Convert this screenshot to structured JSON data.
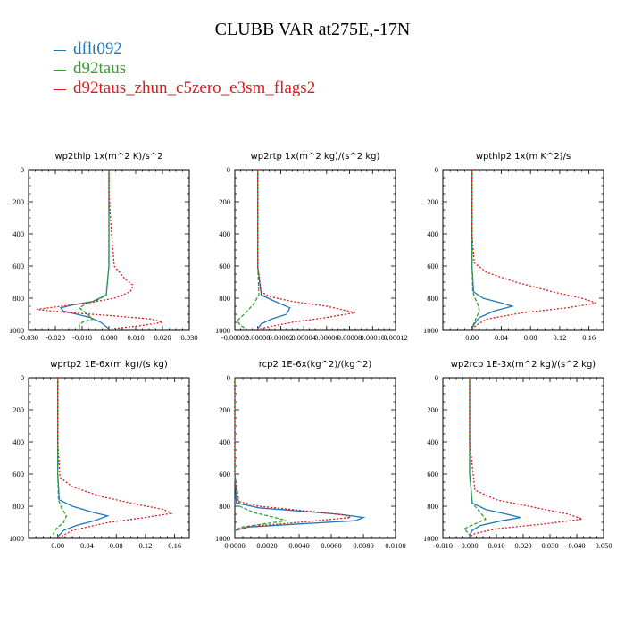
{
  "figure_title": "CLUBB VAR at275E,-17N",
  "legend": [
    {
      "label": "dflt092",
      "color": "#2276b8"
    },
    {
      "label": "d92taus",
      "color": "#33a02c"
    },
    {
      "label": "d92taus_zhun_c5zero_e3sm_flags2",
      "color": "#e31a1c"
    }
  ],
  "chart_data": [
    {
      "type": "line",
      "title": "wp2thlp   1x(m^2 K)/s^2",
      "xlim": [
        -0.03,
        0.03
      ],
      "xticks": [
        -0.03,
        -0.02,
        -0.01,
        0.0,
        0.01,
        0.02,
        0.03
      ],
      "xtick_labels": [
        "-0.030",
        "-0.020",
        "-0.010",
        "0.000",
        "0.010",
        "0.020",
        "0.030"
      ],
      "ylim": [
        1000,
        0
      ],
      "yticks": [
        0,
        200,
        400,
        600,
        800,
        1000
      ],
      "series": [
        {
          "name": "dflt092",
          "x": [
            0.0,
            0.0,
            0.0,
            0.0,
            -0.001,
            -0.006,
            -0.013,
            -0.018,
            -0.017,
            -0.012,
            -0.007,
            -0.003,
            0.0
          ],
          "y": [
            0,
            200,
            400,
            600,
            780,
            820,
            840,
            860,
            880,
            900,
            920,
            950,
            990
          ]
        },
        {
          "name": "d92taus",
          "x": [
            0.0,
            0.0,
            0.0,
            0.0,
            -0.001,
            -0.004,
            -0.008,
            -0.011,
            -0.008,
            -0.006,
            -0.01,
            -0.011,
            -0.011
          ],
          "y": [
            0,
            200,
            400,
            600,
            780,
            810,
            830,
            860,
            900,
            930,
            950,
            970,
            990
          ]
        },
        {
          "name": "d92taus_zhun_c5zero_e3sm_flags2",
          "x": [
            0.0,
            0.0,
            0.001,
            0.002,
            0.006,
            0.009,
            0.008,
            0.002,
            -0.008,
            -0.018,
            -0.027,
            -0.015,
            0.002,
            0.016,
            0.02,
            0.012,
            0.001
          ],
          "y": [
            0,
            150,
            400,
            600,
            680,
            720,
            760,
            800,
            830,
            850,
            870,
            890,
            910,
            930,
            950,
            970,
            990
          ]
        }
      ]
    },
    {
      "type": "line",
      "title": "wp2rtp   1x(m^2 kg)/(s^2 kg)",
      "xlim": [
        -2e-05,
        0.00012
      ],
      "xticks": [
        -2e-05,
        0.0,
        2e-05,
        4e-05,
        6e-05,
        8e-05,
        0.0001,
        0.00012
      ],
      "xtick_labels": [
        "-0.00002",
        "0.00000",
        "0.00002",
        "0.00004",
        "0.00006",
        "0.00008",
        "0.00010",
        "0.00012"
      ],
      "ylim": [
        1000,
        0
      ],
      "yticks": [
        0,
        200,
        400,
        600,
        800,
        1000
      ],
      "series": [
        {
          "name": "dflt092",
          "x": [
            0.0,
            0.0,
            0.0,
            0.0,
            3e-06,
            1.5e-05,
            2.8e-05,
            2.5e-05,
            1.2e-05,
            3e-06,
            0.0
          ],
          "y": [
            0,
            200,
            400,
            600,
            780,
            820,
            860,
            900,
            930,
            960,
            990
          ]
        },
        {
          "name": "d92taus",
          "x": [
            0.0,
            0.0,
            0.0,
            0.0,
            1e-06,
            -4e-06,
            -1.2e-05,
            -1.8e-05,
            -1.5e-05,
            -1e-05
          ],
          "y": [
            0,
            200,
            400,
            600,
            780,
            840,
            900,
            940,
            970,
            990
          ]
        },
        {
          "name": "d92taus_zhun_c5zero_e3sm_flags2",
          "x": [
            0.0,
            0.0,
            0.0,
            0.0,
            3e-06,
            1e-05,
            3e-05,
            6e-05,
            8.5e-05,
            6e-05,
            3e-05,
            8e-06,
            0.0
          ],
          "y": [
            0,
            200,
            400,
            600,
            760,
            790,
            820,
            850,
            890,
            920,
            950,
            980,
            995
          ]
        }
      ]
    },
    {
      "type": "line",
      "title": "wpthlp2   1x(m K^2)/s",
      "xlim": [
        -0.04,
        0.18
      ],
      "xticks": [
        0.0,
        0.04,
        0.08,
        0.12,
        0.16
      ],
      "xtick_labels": [
        "0.00",
        "0.04",
        "0.08",
        "0.12",
        "0.16"
      ],
      "ylim": [
        1000,
        0
      ],
      "yticks": [
        0,
        200,
        400,
        600,
        800,
        1000
      ],
      "series": [
        {
          "name": "dflt092",
          "x": [
            0.0,
            0.0,
            0.0,
            0.0,
            0.002,
            0.015,
            0.04,
            0.055,
            0.03,
            0.01,
            0.003,
            0.0
          ],
          "y": [
            0,
            200,
            400,
            600,
            760,
            800,
            830,
            850,
            880,
            920,
            960,
            990
          ]
        },
        {
          "name": "d92taus",
          "x": [
            0.0,
            0.0,
            0.0,
            0.0,
            0.001,
            0.004,
            0.008,
            0.01,
            0.006,
            0.002,
            0.0
          ],
          "y": [
            0,
            200,
            400,
            600,
            760,
            800,
            840,
            880,
            920,
            960,
            990
          ]
        },
        {
          "name": "d92taus_zhun_c5zero_e3sm_flags2",
          "x": [
            0.0,
            0.0,
            0.0,
            0.003,
            0.02,
            0.06,
            0.11,
            0.15,
            0.17,
            0.13,
            0.07,
            0.02,
            0.005,
            0.0
          ],
          "y": [
            0,
            200,
            400,
            580,
            640,
            700,
            760,
            800,
            830,
            860,
            890,
            930,
            970,
            995
          ]
        }
      ]
    },
    {
      "type": "line",
      "title": "wprtp2   1E-6x(m kg)/(s kg)",
      "xlim": [
        -0.04,
        0.18
      ],
      "xticks": [
        0.0,
        0.04,
        0.08,
        0.12,
        0.16
      ],
      "xtick_labels": [
        "0.00",
        "0.04",
        "0.08",
        "0.12",
        "0.16"
      ],
      "ylim": [
        1000,
        0
      ],
      "yticks": [
        0,
        200,
        400,
        600,
        800,
        1000
      ],
      "series": [
        {
          "name": "dflt092",
          "x": [
            0.0,
            0.0,
            0.0,
            0.0,
            0.002,
            0.02,
            0.05,
            0.068,
            0.05,
            0.025,
            0.008,
            0.0
          ],
          "y": [
            0,
            200,
            400,
            600,
            760,
            800,
            840,
            860,
            890,
            920,
            950,
            990
          ]
        },
        {
          "name": "d92taus",
          "x": [
            0.0,
            0.0,
            0.0,
            0.0,
            0.001,
            0.005,
            0.012,
            0.008,
            -0.002,
            -0.006,
            -0.004
          ],
          "y": [
            0,
            200,
            400,
            600,
            760,
            810,
            860,
            900,
            940,
            970,
            990
          ]
        },
        {
          "name": "d92taus_zhun_c5zero_e3sm_flags2",
          "x": [
            0.0,
            0.0,
            0.0,
            0.003,
            0.02,
            0.06,
            0.11,
            0.145,
            0.155,
            0.12,
            0.07,
            0.02,
            0.002
          ],
          "y": [
            0,
            200,
            400,
            620,
            680,
            740,
            790,
            820,
            845,
            870,
            900,
            950,
            995
          ]
        }
      ]
    },
    {
      "type": "line",
      "title": "rcp2   1E-6x(kg^2)/(kg^2)",
      "xlim": [
        0.0,
        0.01
      ],
      "xticks": [
        0.0,
        0.002,
        0.004,
        0.006,
        0.008,
        0.01
      ],
      "xtick_labels": [
        "0.0000",
        "0.0020",
        "0.0040",
        "0.0060",
        "0.0080",
        "0.0100"
      ],
      "ylim": [
        1000,
        0
      ],
      "yticks": [
        0,
        200,
        400,
        600,
        800,
        1000
      ],
      "series": [
        {
          "name": "dflt092",
          "x": [
            0.0,
            0.0,
            0.0,
            0.0001,
            0.0015,
            0.004,
            0.0065,
            0.008,
            0.0075,
            0.004,
            0.0008,
            0.0
          ],
          "y": [
            0,
            200,
            600,
            780,
            810,
            830,
            850,
            870,
            890,
            910,
            930,
            950
          ]
        },
        {
          "name": "d92taus",
          "x": [
            0.0,
            0.0,
            0.0,
            0.0003,
            0.0012,
            0.0025,
            0.0032,
            0.0018,
            0.0004,
            0.0
          ],
          "y": [
            0,
            200,
            600,
            800,
            840,
            870,
            890,
            910,
            930,
            950
          ]
        },
        {
          "name": "d92taus_zhun_c5zero_e3sm_flags2",
          "x": [
            0.0,
            0.0,
            0.0,
            0.0002,
            0.0015,
            0.0045,
            0.0068,
            0.0072,
            0.004,
            0.001,
            0.0001
          ],
          "y": [
            0,
            200,
            600,
            770,
            800,
            830,
            855,
            870,
            900,
            925,
            950
          ]
        }
      ]
    },
    {
      "type": "line",
      "title": "wp2rcp   1E-3x(m^2 kg)/(s^2 kg)",
      "xlim": [
        -0.01,
        0.05
      ],
      "xticks": [
        -0.01,
        0.0,
        0.01,
        0.02,
        0.03,
        0.04,
        0.05
      ],
      "xtick_labels": [
        "-0.010",
        "0.000",
        "0.010",
        "0.020",
        "0.030",
        "0.040",
        "0.050"
      ],
      "ylim": [
        1000,
        0
      ],
      "yticks": [
        0,
        200,
        400,
        600,
        800,
        1000
      ],
      "series": [
        {
          "name": "dflt092",
          "x": [
            0.0,
            0.0,
            0.0,
            0.0,
            0.001,
            0.006,
            0.014,
            0.019,
            0.012,
            0.004,
            0.001,
            0.0
          ],
          "y": [
            0,
            200,
            400,
            600,
            780,
            820,
            850,
            870,
            890,
            920,
            950,
            980
          ]
        },
        {
          "name": "d92taus",
          "x": [
            0.0,
            0.0,
            0.0,
            0.0,
            0.001,
            0.004,
            0.006,
            0.002,
            -0.002,
            -0.001,
            0.0
          ],
          "y": [
            0,
            200,
            400,
            600,
            780,
            840,
            880,
            910,
            940,
            960,
            980
          ]
        },
        {
          "name": "d92taus_zhun_c5zero_e3sm_flags2",
          "x": [
            0.0,
            0.0,
            0.0,
            0.002,
            0.01,
            0.025,
            0.037,
            0.042,
            0.028,
            0.01,
            0.002,
            0.0
          ],
          "y": [
            0,
            200,
            400,
            700,
            760,
            810,
            850,
            880,
            910,
            940,
            970,
            990
          ]
        }
      ]
    }
  ]
}
